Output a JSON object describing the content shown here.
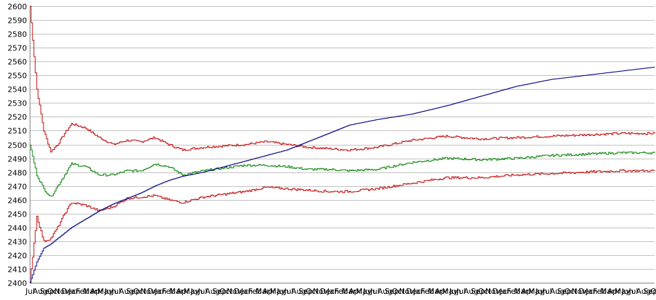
{
  "chart_data": {
    "type": "line",
    "title": "",
    "xlabel": "",
    "ylabel": "",
    "ylim": [
      2400,
      2600
    ],
    "yticks": [
      2400,
      2410,
      2420,
      2430,
      2440,
      2450,
      2460,
      2470,
      2480,
      2490,
      2500,
      2510,
      2520,
      2530,
      2540,
      2550,
      2560,
      2570,
      2580,
      2590,
      2600
    ],
    "grid": "horizontal",
    "legend": "none",
    "x_tick_labels": [
      "Jul",
      "Aug",
      "Sep",
      "Oct",
      "Nov",
      "Dec",
      "Jan",
      "Feb",
      "Mar",
      "Apr",
      "May",
      "Jun",
      "Jul",
      "Aug",
      "Sep",
      "Oct",
      "Nov",
      "Dec",
      "Jan",
      "Feb",
      "Mar",
      "Apr",
      "May",
      "Jun",
      "Jul",
      "Aug",
      "Sep",
      "Oct",
      "Nov",
      "Dec",
      "Jan",
      "Feb",
      "Mar",
      "Apr",
      "May",
      "Jun",
      "Jul",
      "Aug",
      "Sep",
      "Oct",
      "Nov",
      "Dec",
      "Jan",
      "Feb",
      "Mar",
      "Apr",
      "May",
      "Jun",
      "Jul",
      "Aug",
      "Sep",
      "Oct",
      "Nov",
      "Dec",
      "Jan",
      "Feb",
      "Mar",
      "Apr",
      "May",
      "Jun",
      "Jul",
      "Aug",
      "Sep",
      "Oct",
      "Nov",
      "Dec",
      "Jan",
      "Feb",
      "Mar",
      "Apr",
      "May",
      "Jun",
      "Jul",
      "Aug",
      "Sep",
      "Oct",
      "Nov",
      "Dec",
      "Jan",
      "Feb",
      "Mar",
      "Apr",
      "May",
      "Jun",
      "Jul",
      "Aug",
      "Sep",
      "Oct"
    ],
    "x": [
      0,
      1,
      2,
      3,
      4,
      5,
      6,
      8,
      10,
      12,
      14,
      16,
      18,
      20,
      22,
      25,
      28,
      31,
      34,
      37,
      40,
      43,
      46,
      50,
      55,
      60,
      65,
      70,
      75,
      80,
      85,
      90
    ],
    "series": [
      {
        "color": "#c00000",
        "values": [
          2600,
          2540,
          2510,
          2495,
          2500,
          2508,
          2515,
          2512,
          2505,
          2500,
          2503,
          2502,
          2505,
          2500,
          2496,
          2498,
          2499,
          2500,
          2502,
          2500,
          2498,
          2497,
          2496,
          2498,
          2503,
          2506,
          2504,
          2505,
          2506,
          2507,
          2508,
          2508
        ]
      },
      {
        "color": "#008000",
        "values": [
          2500,
          2478,
          2468,
          2462,
          2470,
          2478,
          2486,
          2484,
          2478,
          2478,
          2481,
          2481,
          2486,
          2484,
          2478,
          2481,
          2483,
          2485,
          2485,
          2484,
          2482,
          2482,
          2481,
          2482,
          2487,
          2490,
          2489,
          2490,
          2492,
          2493,
          2494,
          2494
        ]
      },
      {
        "color": "#c00000",
        "values": [
          2400,
          2448,
          2430,
          2432,
          2440,
          2450,
          2458,
          2456,
          2452,
          2455,
          2461,
          2462,
          2463,
          2460,
          2458,
          2462,
          2464,
          2466,
          2469,
          2468,
          2467,
          2466,
          2466,
          2468,
          2472,
          2476,
          2476,
          2478,
          2479,
          2480,
          2481,
          2481
        ]
      },
      {
        "color": "#000080",
        "values": [
          2400,
          2415,
          2425,
          2428,
          2432,
          2436,
          2440,
          2446,
          2452,
          2457,
          2461,
          2465,
          2470,
          2474,
          2477,
          2480,
          2484,
          2488,
          2492,
          2496,
          2502,
          2508,
          2514,
          2518,
          2522,
          2528,
          2535,
          2542,
          2547,
          2550,
          2553,
          2556
        ]
      }
    ]
  }
}
